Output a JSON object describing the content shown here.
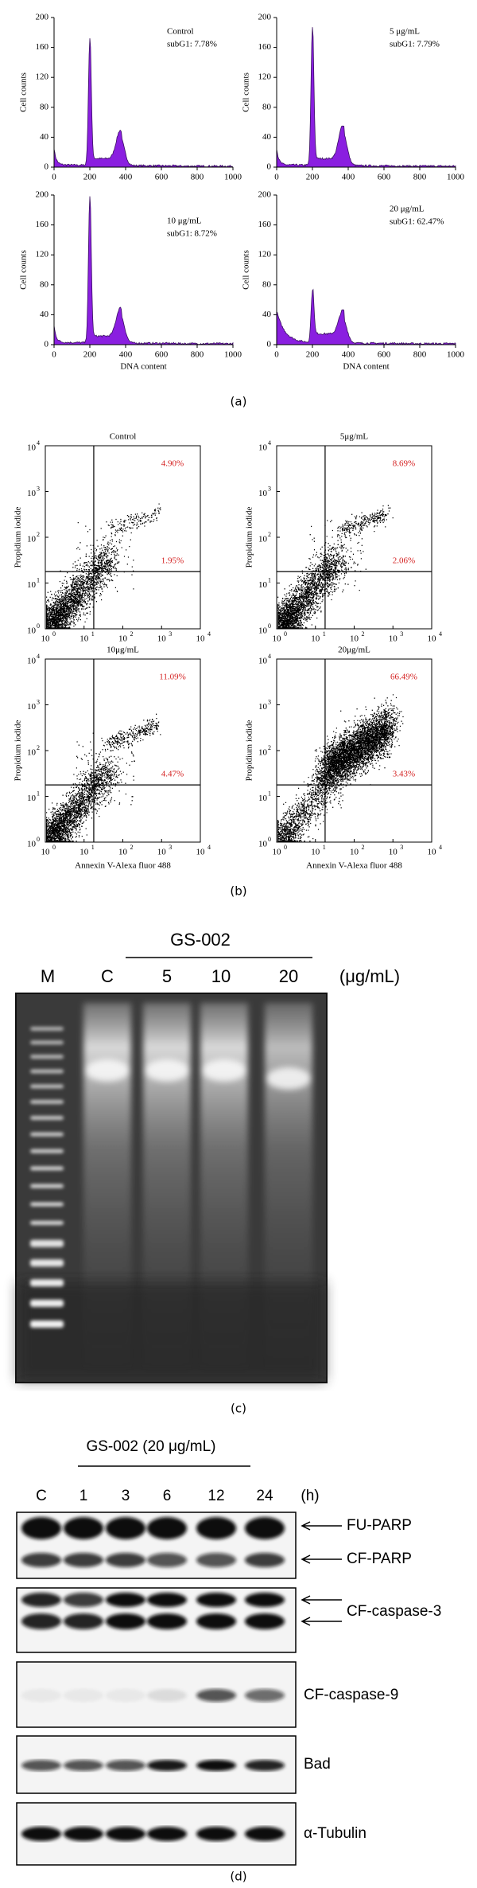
{
  "panel_a": {
    "label": "(a)",
    "y_axis_label": "Cell counts",
    "x_axis_label": "DNA content",
    "yticks": [
      0,
      40,
      80,
      120,
      160,
      200
    ],
    "xticks": [
      0,
      200,
      400,
      600,
      800,
      1000
    ],
    "plots": [
      {
        "title": "Control",
        "subg1": "subG1: 7.78%"
      },
      {
        "title": "5 μg/mL",
        "subg1": "subG1: 7.79%"
      },
      {
        "title": "10 μg/mL",
        "subg1": "subG1: 8.72%"
      },
      {
        "title": "20 μg/mL",
        "subg1": "subG1: 62.47%"
      }
    ]
  },
  "panel_b": {
    "label": "(b)",
    "y_axis_label": "Propidium iodide",
    "x_axis_label": "Annexin V-Alexa fluor 488",
    "tick_base": "10",
    "tick_exponents": [
      0,
      1,
      2,
      3,
      4
    ],
    "plots": [
      {
        "title": "Control",
        "upper_right": "4.90%",
        "lower_right": "1.95%"
      },
      {
        "title": "5μg/mL",
        "upper_right": "8.69%",
        "lower_right": "2.06%"
      },
      {
        "title": "10μg/mL",
        "upper_right": "11.09%",
        "lower_right": "4.47%"
      },
      {
        "title": "20μg/mL",
        "upper_right": "66.49%",
        "lower_right": "3.43%"
      }
    ]
  },
  "panel_c": {
    "label": "(c)",
    "treatment": "GS-002",
    "lanes": [
      "M",
      "C",
      "5",
      "10",
      "20"
    ],
    "unit": "(μg/mL)"
  },
  "panel_d": {
    "label": "(d)",
    "treatment": "GS-002 (20 μg/mL)",
    "lanes": [
      "C",
      "1",
      "3",
      "6",
      "12",
      "24"
    ],
    "unit": "(h)",
    "blots": [
      "FU-PARP",
      "CF-PARP",
      "CF-caspase-3",
      "CF-caspase-9",
      "Bad",
      "α-Tubulin"
    ]
  }
}
